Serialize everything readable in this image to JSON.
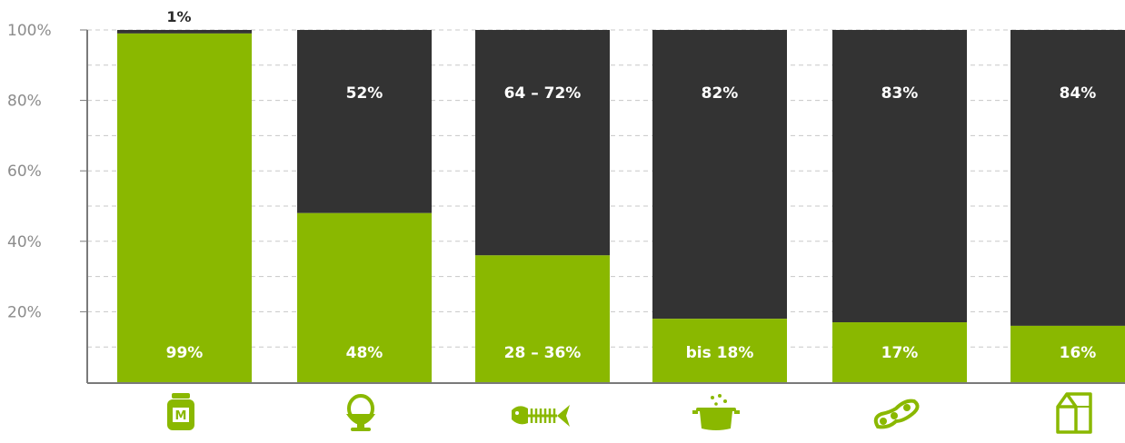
{
  "colors": {
    "green": "#8ab800",
    "dark": "#333333",
    "axis": "#7a7a7a",
    "grid": "#c8c8c8",
    "label_dark": "#2b2b2b"
  },
  "chart_data": {
    "type": "bar",
    "stacked": true,
    "ylim": [
      0,
      100
    ],
    "yticks": [
      "100%",
      "80%",
      "60%",
      "40%",
      "20%"
    ],
    "ytick_values": [
      100,
      80,
      60,
      40,
      20
    ],
    "grid": true,
    "categories": [
      "honey",
      "egg",
      "fish",
      "pot",
      "soybeans",
      "milk"
    ],
    "category_icons": [
      "honey-jar-icon",
      "egg-cup-icon",
      "fish-bone-icon",
      "cooking-pot-icon",
      "soybean-icon",
      "milk-carton-icon"
    ],
    "honey_jar_letter": "M",
    "series": [
      {
        "color": "#8ab800",
        "values": [
          99,
          48,
          36,
          18,
          17,
          16
        ],
        "labels": [
          "99%",
          "48%",
          "28 – 36%",
          "bis 18%",
          "17%",
          "16%"
        ]
      },
      {
        "color": "#333333",
        "values": [
          1,
          52,
          64,
          82,
          83,
          84
        ],
        "labels": [
          "1%",
          "52%",
          "64 – 72%",
          "82%",
          "83%",
          "84%"
        ]
      }
    ]
  }
}
